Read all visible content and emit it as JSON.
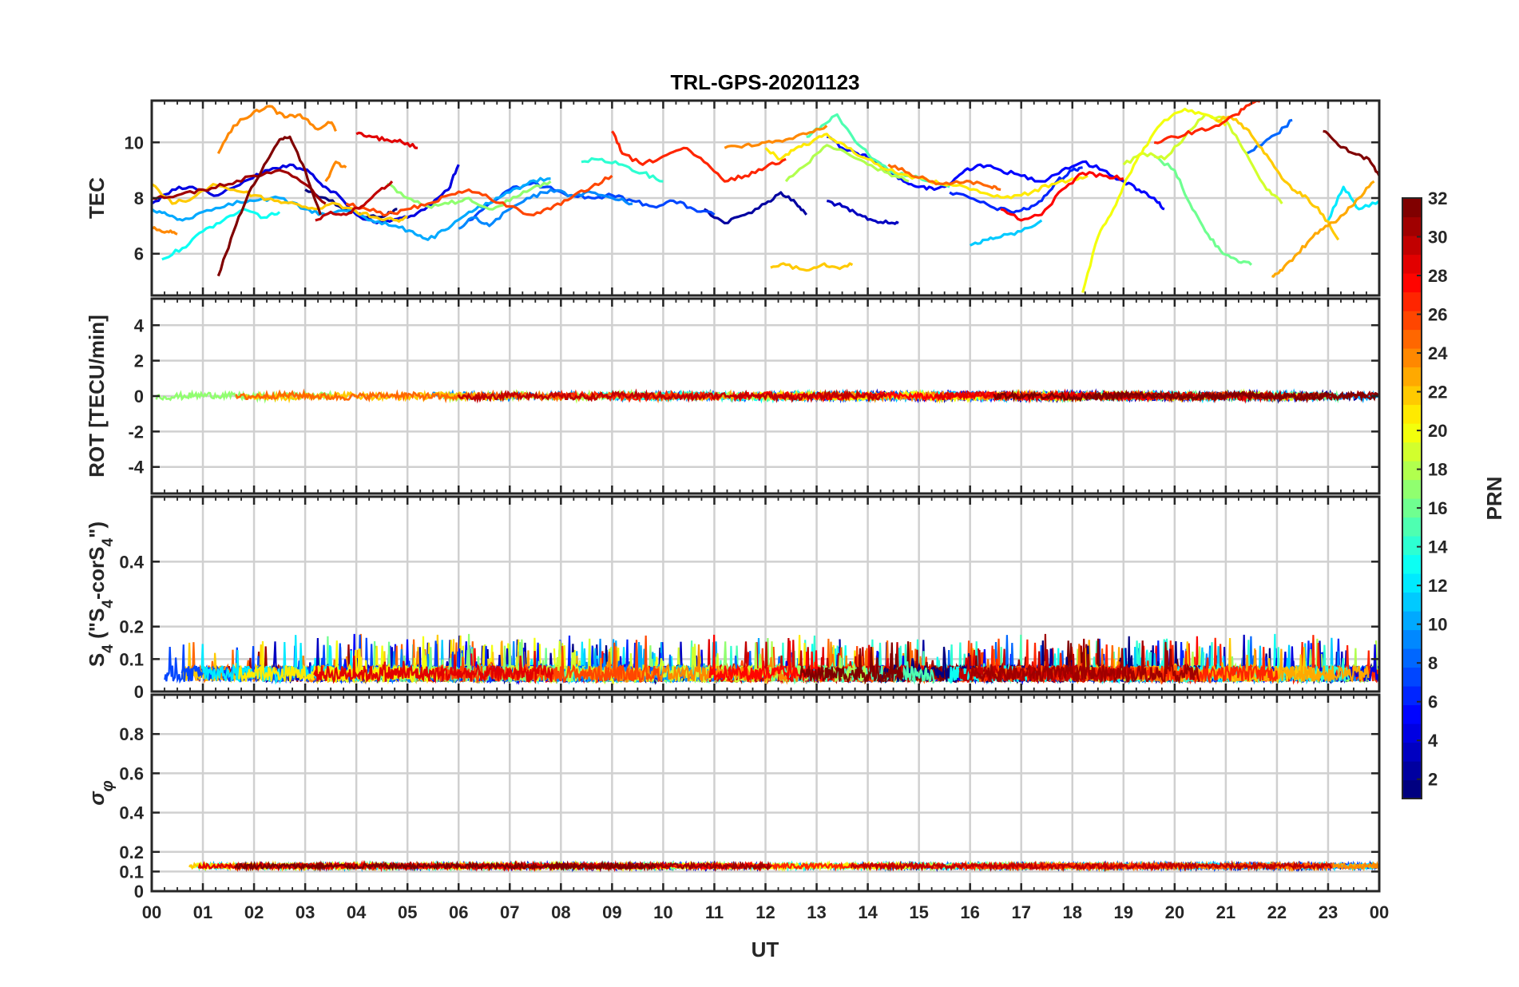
{
  "chart_data": {
    "type": "line",
    "title": "TRL-GPS-20201123",
    "xlabel": "UT",
    "x_tick_labels": [
      "00",
      "01",
      "02",
      "03",
      "04",
      "05",
      "06",
      "07",
      "08",
      "09",
      "10",
      "11",
      "12",
      "13",
      "14",
      "15",
      "16",
      "17",
      "18",
      "19",
      "20",
      "21",
      "22",
      "23",
      "00"
    ],
    "xlim": [
      0,
      24
    ],
    "grid": true,
    "colormap": "jet",
    "colorbar": {
      "label": "PRN",
      "range": [
        1,
        32
      ],
      "tick_labels": [
        "2",
        "4",
        "6",
        "8",
        "10",
        "12",
        "14",
        "16",
        "18",
        "20",
        "22",
        "24",
        "26",
        "28",
        "30",
        "32"
      ],
      "location": "right"
    },
    "panels": [
      {
        "ylabel": "TEC",
        "ylim": [
          4.5,
          11.5
        ],
        "y_ticks": [
          6,
          8,
          10
        ],
        "series": [
          {
            "prn": 1,
            "x": [
              3.0,
              3.4,
              3.8,
              4.2,
              4.6,
              4.8
            ],
            "y": [
              8.3,
              8.0,
              7.6,
              7.3,
              7.4,
              7.6
            ]
          },
          {
            "prn": 2,
            "x": [
              10.8,
              11.2,
              11.6,
              12.0,
              12.3,
              12.6,
              12.8
            ],
            "y": [
              7.6,
              7.1,
              7.4,
              7.8,
              8.2,
              7.8,
              7.4
            ]
          },
          {
            "prn": 3,
            "x": [
              13.2,
              13.5,
              13.8,
              14.1,
              14.4,
              14.6
            ],
            "y": [
              7.9,
              7.7,
              7.4,
              7.2,
              7.1,
              7.1
            ]
          },
          {
            "prn": 4,
            "x": [
              0.0,
              0.4,
              0.8,
              1.3,
              1.8,
              2.3,
              2.7,
              3.1,
              3.4,
              3.7,
              4.0,
              4.4,
              4.7,
              5.0,
              5.4,
              5.8,
              6.0
            ],
            "y": [
              7.8,
              8.3,
              8.4,
              8.1,
              8.6,
              9.0,
              9.2,
              8.9,
              8.4,
              8.0,
              7.4,
              7.1,
              7.2,
              7.3,
              7.7,
              8.3,
              9.2
            ]
          },
          {
            "prn": 5,
            "x": [
              13.2,
              13.5,
              13.8,
              14.1,
              14.4,
              14.7,
              15.0,
              15.3,
              15.6,
              15.9,
              16.2,
              16.6,
              17.0,
              17.4,
              17.8,
              18.2,
              18.6,
              19.0,
              19.3,
              19.6,
              19.8
            ],
            "y": [
              10.2,
              9.8,
              9.6,
              9.4,
              9.0,
              8.6,
              8.4,
              8.3,
              8.5,
              9.0,
              9.2,
              9.0,
              8.8,
              8.6,
              9.0,
              9.3,
              9.0,
              8.6,
              8.3,
              8.0,
              7.6
            ]
          },
          {
            "prn": 6,
            "x": [
              15.6,
              16.0,
              16.4,
              16.8,
              17.1,
              17.4,
              17.7,
              18.0,
              18.2
            ],
            "y": [
              8.2,
              8.0,
              7.7,
              7.5,
              7.6,
              7.9,
              8.6,
              9.0,
              9.1
            ]
          },
          {
            "prn": 7,
            "x": [
              6.2,
              6.6,
              7.0,
              7.4,
              7.8,
              8.2,
              8.6,
              9.0,
              9.4,
              9.8,
              10.2,
              10.6,
              11.0
            ],
            "y": [
              7.2,
              7.8,
              8.3,
              8.5,
              8.4,
              8.1,
              8.0,
              8.1,
              7.9,
              7.7,
              7.9,
              7.6,
              7.4
            ]
          },
          {
            "prn": 8,
            "x": [
              21.4,
              21.7,
              22.0,
              22.3
            ],
            "y": [
              9.6,
              9.9,
              10.3,
              10.8
            ]
          },
          {
            "prn": 9,
            "x": [
              6.0,
              6.3,
              6.6,
              7.0,
              7.4,
              7.8,
              8.2,
              8.6,
              9.0,
              9.4
            ],
            "y": [
              6.9,
              7.3,
              7.0,
              7.6,
              8.0,
              8.3,
              8.1,
              8.2,
              8.0,
              7.8
            ]
          },
          {
            "prn": 10,
            "x": [
              0.0,
              0.3,
              0.6,
              1.0,
              1.5,
              2.0,
              2.5,
              3.0,
              3.4,
              3.9,
              4.3,
              4.7,
              5.1,
              5.4,
              5.8,
              6.2,
              6.6,
              7.0,
              7.4,
              7.8
            ],
            "y": [
              7.6,
              7.4,
              7.2,
              7.5,
              7.8,
              7.9,
              8.0,
              7.6,
              7.4,
              7.6,
              7.2,
              7.0,
              6.8,
              6.5,
              6.9,
              7.5,
              7.8,
              8.2,
              8.6,
              8.7
            ]
          },
          {
            "prn": 11,
            "x": [
              16.0,
              16.3,
              16.6,
              17.0,
              17.4
            ],
            "y": [
              6.3,
              6.5,
              6.6,
              6.8,
              7.2
            ]
          },
          {
            "prn": 12,
            "x": [
              23.0,
              23.3,
              23.6,
              24.0
            ],
            "y": [
              7.2,
              8.4,
              7.6,
              7.9
            ]
          },
          {
            "prn": 13,
            "x": [
              0.2,
              0.6,
              1.0,
              1.4,
              1.8,
              2.2,
              2.5
            ],
            "y": [
              5.8,
              6.2,
              6.8,
              7.2,
              7.6,
              7.3,
              7.5
            ]
          },
          {
            "prn": 14,
            "x": [
              8.4,
              8.8,
              9.2,
              9.6,
              10.0
            ],
            "y": [
              9.3,
              9.4,
              9.2,
              8.9,
              8.6
            ]
          },
          {
            "prn": 15,
            "x": [
              12.8,
              13.1,
              13.4,
              13.7,
              14.0,
              14.4,
              14.8,
              15.2,
              15.6
            ],
            "y": [
              10.2,
              10.6,
              11.0,
              10.2,
              9.6,
              9.0,
              8.8,
              8.6,
              8.4
            ]
          },
          {
            "prn": 16,
            "x": [
              19.6,
              20.0,
              20.3,
              20.6,
              20.9,
              21.2,
              21.5
            ],
            "y": [
              9.5,
              9.0,
              7.8,
              6.8,
              6.1,
              5.8,
              5.6
            ]
          },
          {
            "prn": 17,
            "x": [
              4.6,
              5.0,
              5.4,
              5.8,
              6.2,
              6.6,
              7.0,
              7.4,
              7.8
            ],
            "y": [
              8.5,
              8.0,
              7.7,
              7.8,
              8.0,
              7.6,
              7.9,
              8.3,
              8.6
            ]
          },
          {
            "prn": 18,
            "x": [
              12.4,
              12.8,
              13.2,
              13.6,
              14.0,
              14.4,
              14.8
            ],
            "y": [
              8.6,
              9.2,
              9.9,
              9.6,
              9.2,
              8.9,
              8.6
            ]
          },
          {
            "prn": 19,
            "x": [
              19.0,
              19.4,
              19.8,
              20.2,
              20.6,
              21.0,
              21.4,
              21.8,
              22.1
            ],
            "y": [
              9.2,
              9.6,
              9.4,
              10.2,
              11.0,
              10.8,
              9.6,
              8.3,
              7.8
            ]
          },
          {
            "prn": 20,
            "x": [
              18.2,
              18.5,
              18.8,
              19.1,
              19.4,
              19.8,
              20.2,
              20.6,
              21.0
            ],
            "y": [
              4.6,
              6.6,
              7.6,
              8.8,
              9.8,
              10.8,
              11.2,
              11.0,
              10.6
            ]
          },
          {
            "prn": 21,
            "x": [
              12.0,
              12.3,
              12.6,
              12.9,
              13.2,
              13.6,
              14.0,
              14.4,
              14.8,
              15.2,
              15.6,
              16.0,
              16.4,
              16.8,
              17.2,
              17.6,
              18.0,
              18.3
            ],
            "y": [
              9.8,
              9.4,
              9.8,
              10.0,
              10.3,
              9.8,
              9.4,
              9.0,
              8.8,
              8.6,
              8.5,
              8.3,
              8.1,
              8.0,
              8.2,
              8.5,
              8.7,
              8.8
            ]
          },
          {
            "prn": 22,
            "x": [
              20.8,
              21.1,
              21.4,
              21.7,
              22.0,
              22.3,
              22.6,
              22.9,
              23.2
            ],
            "y": [
              10.8,
              10.9,
              10.5,
              9.8,
              9.0,
              8.3,
              8.0,
              7.4,
              6.5
            ]
          },
          {
            "prn": 22,
            "x": [
              12.1,
              12.4,
              12.8,
              13.1,
              13.4,
              13.7
            ],
            "y": [
              5.5,
              5.6,
              5.4,
              5.6,
              5.5,
              5.6
            ]
          },
          {
            "prn": 22,
            "x": [
              0.0,
              0.4,
              0.8,
              1.2,
              1.6,
              2.0,
              2.4,
              2.8,
              3.2,
              3.6,
              4.0,
              4.4,
              4.8,
              5.0
            ],
            "y": [
              8.5,
              7.8,
              8.0,
              8.5,
              8.3,
              8.1,
              7.9,
              7.8,
              7.6,
              7.8,
              7.5,
              7.3,
              7.2,
              7.3
            ]
          },
          {
            "prn": 23,
            "x": [
              21.9,
              22.1,
              22.4,
              22.7,
              23.0,
              23.3,
              23.6,
              23.9
            ],
            "y": [
              5.2,
              5.4,
              6.0,
              6.6,
              7.0,
              7.4,
              8.0,
              8.6
            ]
          },
          {
            "prn": 24,
            "x": [
              11.2,
              11.6,
              12.0,
              12.4,
              12.8,
              13.2
            ],
            "y": [
              9.8,
              9.9,
              10.0,
              10.1,
              10.3,
              10.6
            ]
          },
          {
            "prn": 24,
            "x": [
              0.0,
              0.3,
              0.5
            ],
            "y": [
              6.9,
              6.8,
              6.7
            ]
          },
          {
            "prn": 24,
            "x": [
              3.4,
              3.6,
              3.8
            ],
            "y": [
              8.6,
              9.3,
              9.1
            ]
          },
          {
            "prn": 24,
            "x": [
              1.3,
              1.6,
              2.0,
              2.3,
              2.6,
              2.9,
              3.2,
              3.5,
              3.6
            ],
            "y": [
              9.6,
              10.6,
              11.1,
              11.3,
              10.9,
              11.0,
              10.5,
              10.7,
              10.4
            ]
          },
          {
            "prn": 25,
            "x": [
              14.4,
              14.8,
              15.2,
              15.6,
              16.0,
              16.4,
              16.6
            ],
            "y": [
              9.2,
              8.9,
              8.6,
              8.5,
              8.6,
              8.4,
              8.3
            ]
          },
          {
            "prn": 26,
            "x": [
              3.8,
              4.2,
              4.6,
              5.0,
              5.4,
              5.8,
              6.2,
              6.6,
              7.0,
              7.4,
              7.8,
              8.2,
              8.6,
              9.0
            ],
            "y": [
              7.8,
              7.6,
              7.4,
              7.6,
              7.8,
              8.1,
              8.3,
              8.0,
              7.7,
              7.4,
              7.6,
              8.0,
              8.4,
              8.8
            ]
          },
          {
            "prn": 27,
            "x": [
              9.0,
              9.2,
              9.6,
              10.0,
              10.4,
              10.8,
              11.2,
              11.6,
              12.0,
              12.4
            ],
            "y": [
              10.4,
              9.6,
              9.2,
              9.5,
              9.8,
              9.3,
              8.6,
              8.8,
              9.1,
              9.4
            ]
          },
          {
            "prn": 27,
            "x": [
              19.6,
              20.0,
              20.4,
              20.8,
              21.2,
              21.5,
              21.8
            ],
            "y": [
              10.0,
              10.2,
              10.4,
              10.6,
              11.0,
              11.4,
              11.6
            ]
          },
          {
            "prn": 28,
            "x": [
              16.6,
              17.0,
              17.4,
              17.8,
              18.2,
              18.6,
              19.0
            ],
            "y": [
              7.6,
              7.2,
              7.4,
              8.3,
              8.9,
              8.8,
              8.7
            ]
          },
          {
            "prn": 29,
            "x": [
              4.0,
              4.3,
              4.6,
              4.9,
              5.2
            ],
            "y": [
              10.3,
              10.2,
              10.1,
              10.0,
              9.8
            ]
          },
          {
            "prn": 30,
            "x": [
              3.2,
              3.5,
              3.8,
              4.1,
              4.4,
              4.7
            ],
            "y": [
              7.2,
              7.5,
              7.4,
              7.7,
              8.2,
              8.6
            ]
          },
          {
            "prn": 31,
            "x": [
              0.0,
              0.5,
              1.0,
              1.5,
              2.0,
              2.5,
              3.0,
              3.4
            ],
            "y": [
              8.0,
              8.1,
              8.3,
              8.5,
              8.8,
              9.0,
              8.5,
              7.8
            ]
          },
          {
            "prn": 32,
            "x": [
              1.3,
              1.6,
              1.9,
              2.2,
              2.5,
              2.7,
              3.0,
              3.3
            ],
            "y": [
              5.2,
              6.8,
              8.2,
              9.2,
              10.1,
              10.2,
              9.0,
              7.4
            ]
          },
          {
            "prn": 32,
            "x": [
              22.9,
              23.2,
              23.5,
              23.8,
              24.0
            ],
            "y": [
              10.4,
              9.9,
              9.6,
              9.4,
              8.8
            ]
          }
        ]
      },
      {
        "ylabel": "ROT [TECU/min]",
        "ylim": [
          -5.5,
          5.5
        ],
        "y_ticks": [
          -4,
          -2,
          0,
          2,
          4
        ],
        "series_note_values": "all satellites near 0, amplitude ~0.2 TECU/min"
      },
      {
        "ylabel": "S4 (\"S4-corS4\")",
        "ylim": [
          0,
          0.6
        ],
        "y_ticks": [
          0,
          0.1,
          0.2,
          0.4
        ],
        "typical_range": [
          0.02,
          0.2
        ]
      },
      {
        "ylabel": "σφ",
        "ylim": [
          0,
          1.0
        ],
        "y_ticks": [
          0,
          0.1,
          0.2,
          0.4,
          0.6,
          0.8
        ],
        "typical_range": [
          0.1,
          0.15
        ]
      }
    ]
  }
}
